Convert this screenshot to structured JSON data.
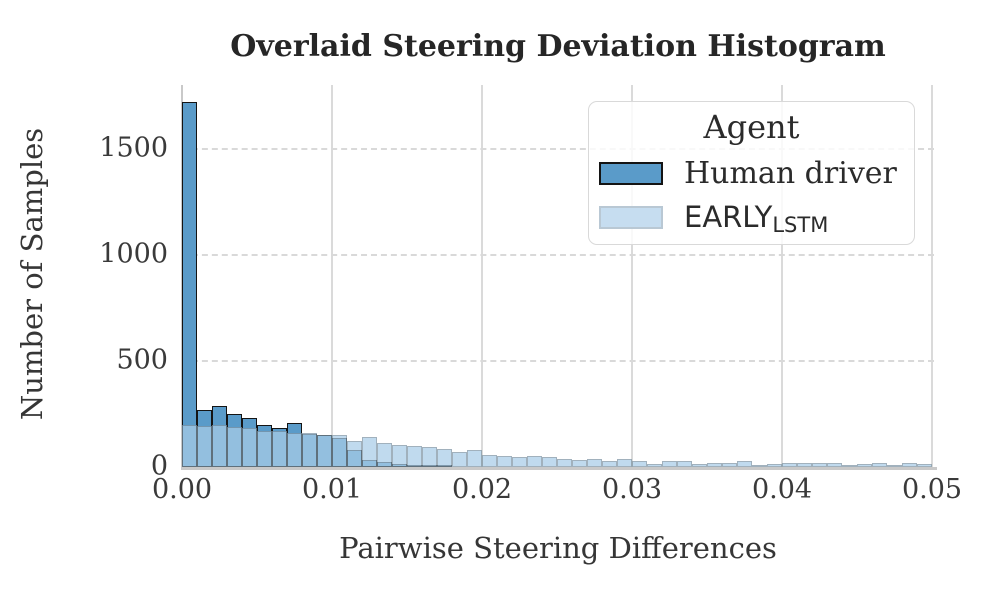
{
  "title": "Overlaid Steering Deviation Histogram",
  "chart_data": {
    "type": "bar",
    "subtype": "overlaid_histogram",
    "title": "Overlaid Steering Deviation Histogram",
    "xlabel": "Pairwise Steering Differences",
    "ylabel": "Number of Samples",
    "xlim": [
      0,
      0.05
    ],
    "ylim": [
      0,
      1800
    ],
    "bin_width": 0.001,
    "grid": {
      "vertical_style": "solid",
      "horizontal_style": "dashed",
      "grid_on": true
    },
    "x_ticks": [
      {
        "value": 0.0,
        "label": "0.00"
      },
      {
        "value": 0.01,
        "label": "0.01"
      },
      {
        "value": 0.02,
        "label": "0.02"
      },
      {
        "value": 0.03,
        "label": "0.03"
      },
      {
        "value": 0.04,
        "label": "0.04"
      },
      {
        "value": 0.05,
        "label": "0.05"
      }
    ],
    "y_ticks": [
      {
        "value": 0,
        "label": "0"
      },
      {
        "value": 500,
        "label": "500"
      },
      {
        "value": 1000,
        "label": "1000"
      },
      {
        "value": 1500,
        "label": "1500"
      }
    ],
    "legend": {
      "title": "Agent",
      "position": "upper-right",
      "entries": [
        {
          "label": "Human driver",
          "sub": "",
          "font": "serif",
          "swatch_fill": "#5a9bc9",
          "swatch_edge": "#141414"
        },
        {
          "label": "EARLY",
          "sub": "LSTM",
          "font": "sans",
          "swatch_fill": "#c6ddf0",
          "swatch_edge": "#b9c8d4"
        }
      ]
    },
    "series": [
      {
        "name": "Human driver",
        "bin_start": 0.0,
        "fill": "#5a9bc9",
        "edge": "#141414",
        "edge_width": 1.5,
        "opacity": 1,
        "values": [
          1720,
          268,
          288,
          248,
          232,
          198,
          186,
          206,
          155,
          150,
          136,
          80,
          35,
          25,
          14,
          8,
          5,
          3
        ]
      },
      {
        "name": "EARLY_LSTM",
        "bin_start": 0.0,
        "fill": "#a9cde8",
        "edge": "#7d94a4",
        "edge_width": 1.2,
        "opacity": 0.72,
        "values": [
          200,
          191,
          196,
          188,
          182,
          172,
          168,
          162,
          158,
          152,
          150,
          122,
          140,
          112,
          106,
          100,
          95,
          86,
          70,
          79,
          56,
          51,
          47,
          51,
          47,
          37,
          33,
          37,
          28,
          37,
          26,
          16,
          30,
          30,
          12,
          21,
          21,
          30,
          9,
          16,
          19,
          19,
          19,
          19,
          9,
          12,
          19,
          9,
          19,
          12
        ]
      }
    ]
  }
}
